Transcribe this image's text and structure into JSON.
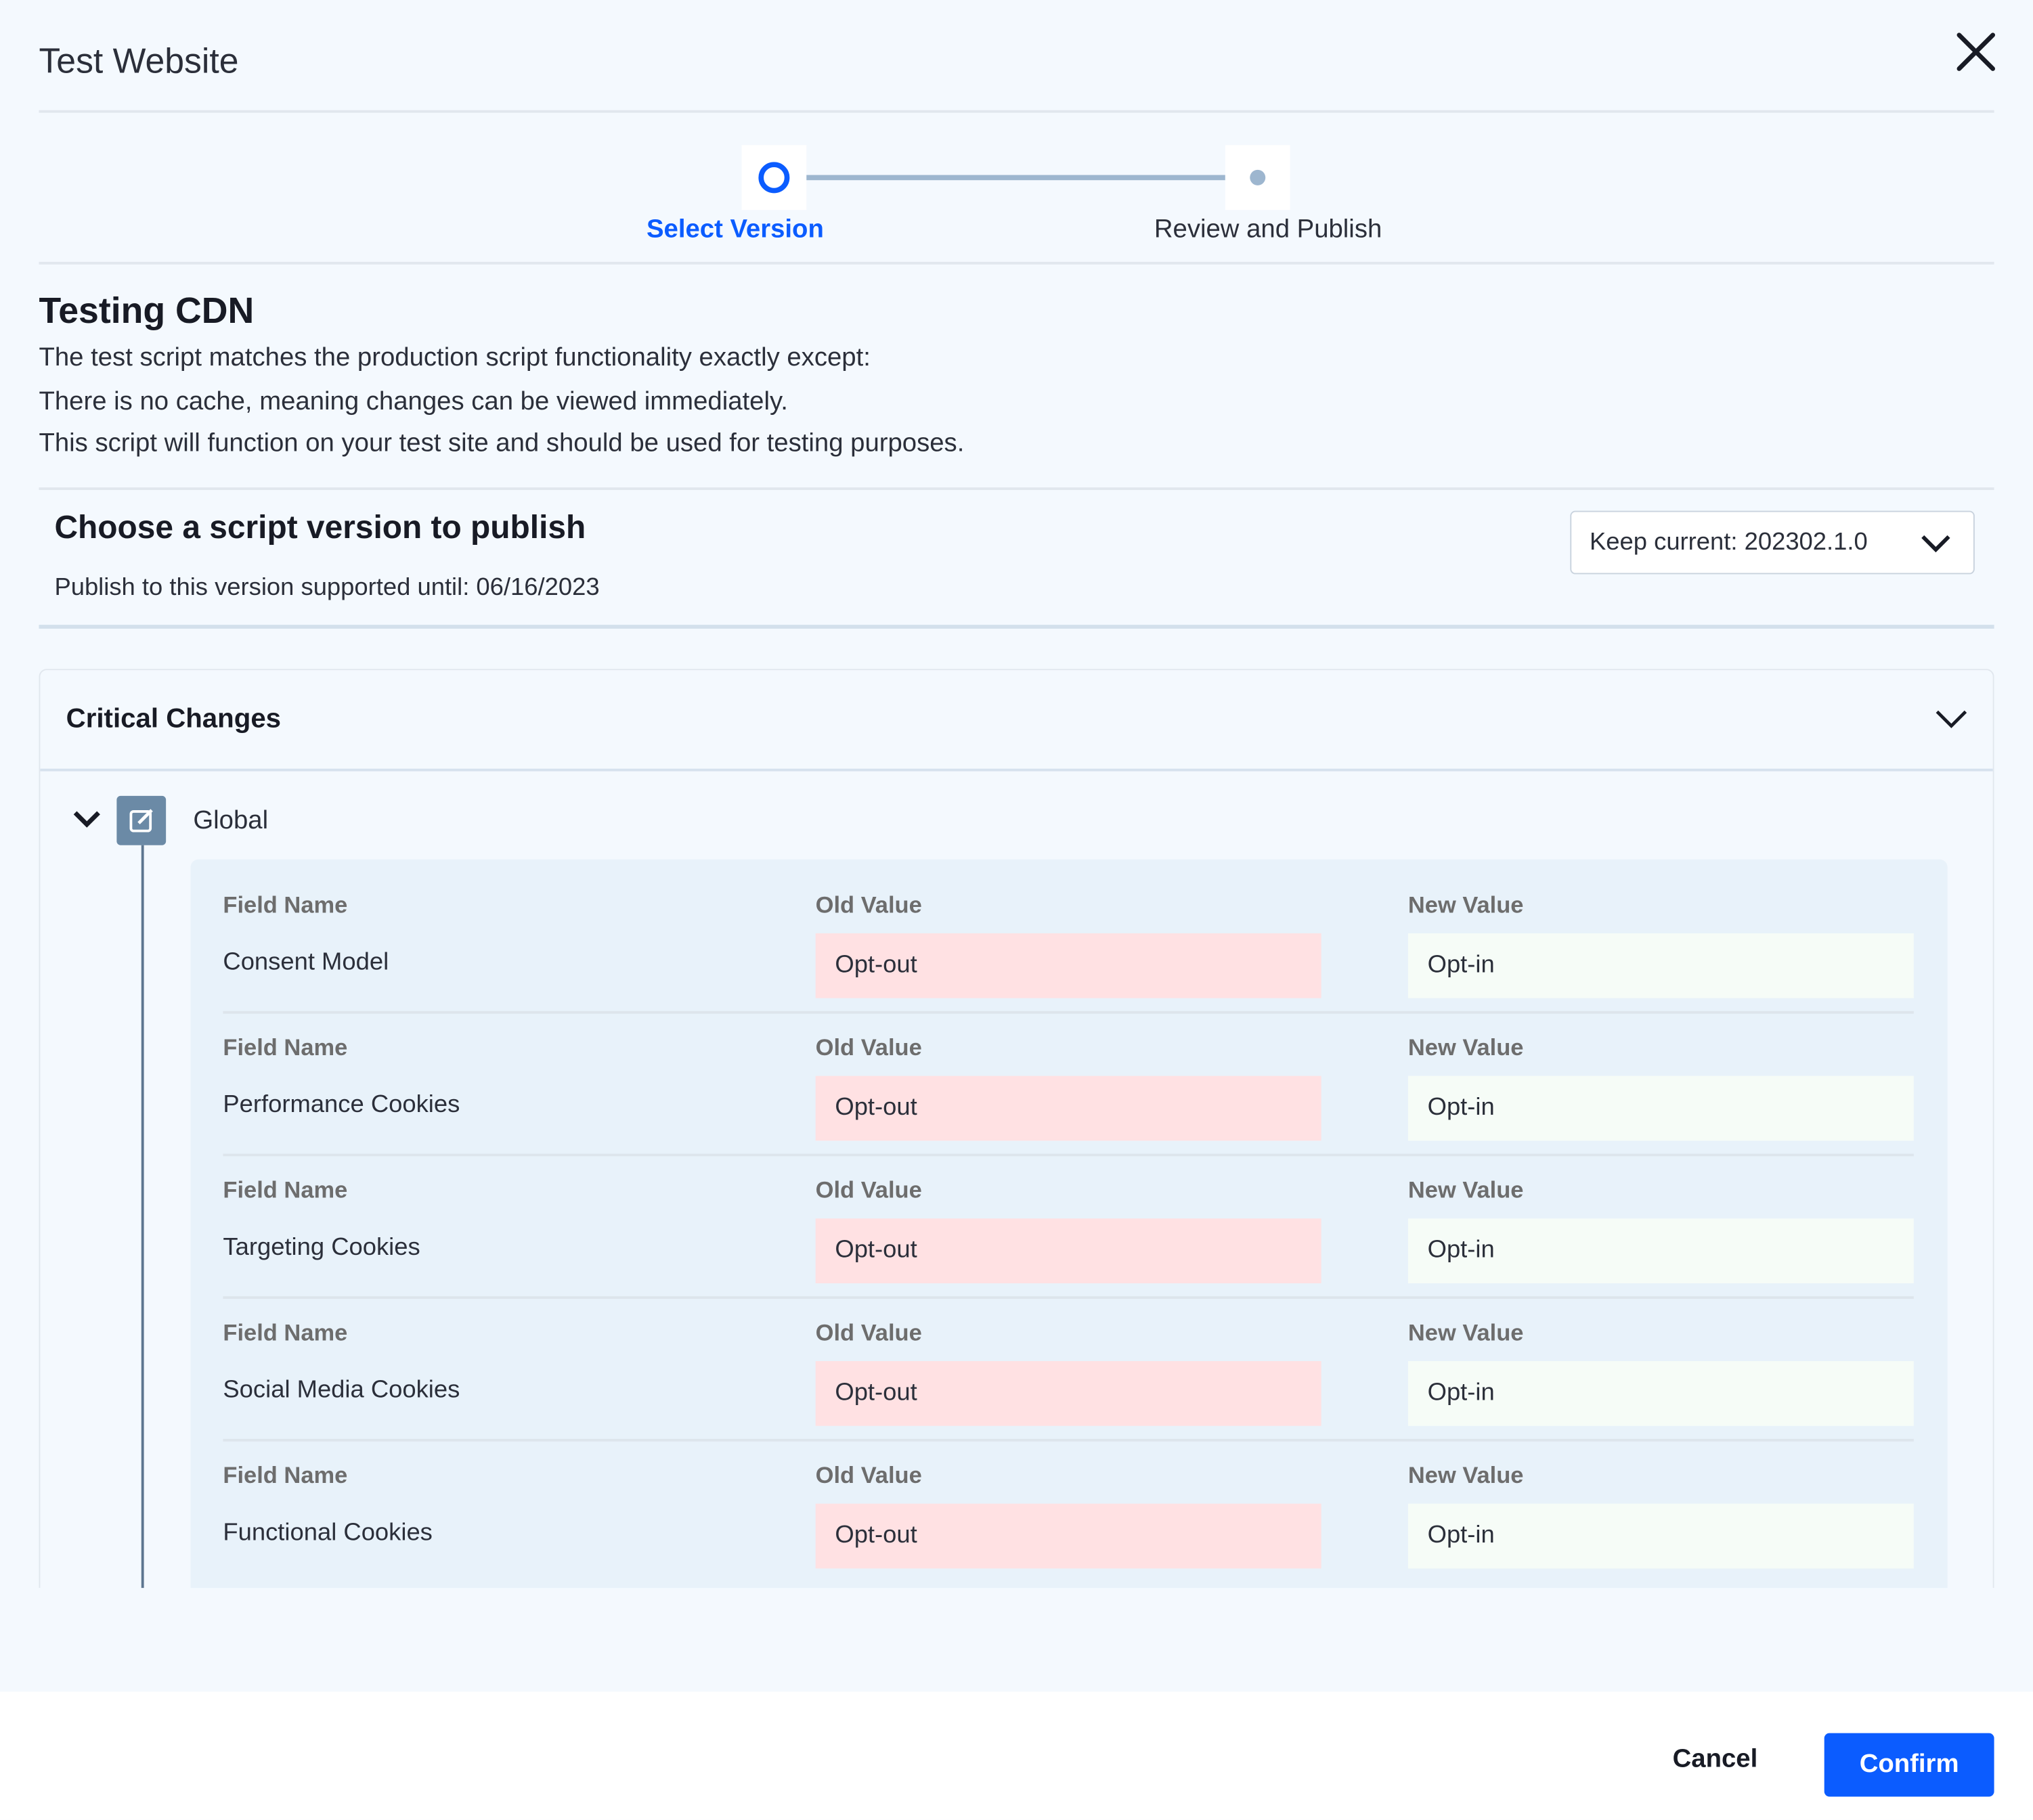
{
  "header": {
    "title": "Test Website",
    "close_icon": "close-icon"
  },
  "stepper": {
    "steps": [
      {
        "label": "Select Version",
        "state": "active"
      },
      {
        "label": "Review and Publish",
        "state": "pending"
      }
    ],
    "accent": "#0b5cff"
  },
  "intro": {
    "heading": "Testing CDN",
    "lines": [
      "The test script matches the production script functionality exactly except:",
      "There is no cache, meaning changes can be viewed immediately.",
      "This script will function on your test site and should be used for testing purposes."
    ]
  },
  "version": {
    "heading": "Choose a script version to publish",
    "subtext": "Publish to this version supported until: 06/16/2023",
    "dropdown_value": "Keep current: 202302.1.0"
  },
  "changes": {
    "title": "Critical Changes",
    "group": "Global",
    "col_field": "Field Name",
    "col_old": "Old Value",
    "col_new": "New Value",
    "rows": [
      {
        "field": "Consent Model",
        "old": "Opt-out",
        "new": "Opt-in"
      },
      {
        "field": "Performance Cookies",
        "old": "Opt-out",
        "new": "Opt-in"
      },
      {
        "field": "Targeting Cookies",
        "old": "Opt-out",
        "new": "Opt-in"
      },
      {
        "field": "Social Media Cookies",
        "old": "Opt-out",
        "new": "Opt-in"
      },
      {
        "field": "Functional Cookies",
        "old": "Opt-out",
        "new": "Opt-in"
      }
    ],
    "old_color": "#ffe1e3",
    "new_color": "#f6fcf7"
  },
  "footer": {
    "cancel": "Cancel",
    "confirm": "Confirm"
  }
}
